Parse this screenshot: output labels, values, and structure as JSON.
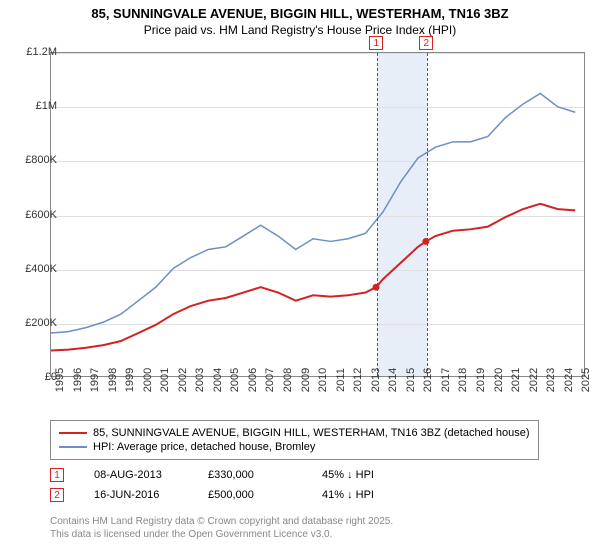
{
  "title_line1": "85, SUNNINGVALE AVENUE, BIGGIN HILL, WESTERHAM, TN16 3BZ",
  "title_line2": "Price paid vs. HM Land Registry's House Price Index (HPI)",
  "chart": {
    "type": "line",
    "background_color": "#ffffff",
    "grid_color": "#e0e0e0",
    "border_color": "#888888",
    "xlim": [
      1995,
      2025.5
    ],
    "ylim": [
      0,
      1200000
    ],
    "ytick_step": 200000,
    "yticks": [
      "£0",
      "£200K",
      "£400K",
      "£600K",
      "£800K",
      "£1M",
      "£1.2M"
    ],
    "xticks": [
      1995,
      1996,
      1997,
      1998,
      1999,
      2000,
      2001,
      2002,
      2003,
      2004,
      2005,
      2006,
      2007,
      2008,
      2009,
      2010,
      2011,
      2012,
      2013,
      2014,
      2015,
      2016,
      2017,
      2018,
      2019,
      2020,
      2021,
      2022,
      2023,
      2024,
      2025
    ],
    "label_fontsize": 11,
    "highlight": {
      "start": 2013.6,
      "end": 2016.45,
      "color": "#e8eef7"
    },
    "markers": [
      {
        "n": "1",
        "x": 2013.6,
        "dash_color": "#d22222"
      },
      {
        "n": "2",
        "x": 2016.45,
        "dash_color": "#d22222"
      }
    ],
    "series": [
      {
        "name": "red",
        "color": "#d22222",
        "width": 2,
        "legend": "85, SUNNINGVALE AVENUE, BIGGIN HILL, WESTERHAM, TN16 3BZ (detached house)",
        "points": [
          [
            1995,
            95000
          ],
          [
            1996,
            98000
          ],
          [
            1997,
            105000
          ],
          [
            1998,
            115000
          ],
          [
            1999,
            130000
          ],
          [
            2000,
            160000
          ],
          [
            2001,
            190000
          ],
          [
            2002,
            230000
          ],
          [
            2003,
            260000
          ],
          [
            2004,
            280000
          ],
          [
            2005,
            290000
          ],
          [
            2006,
            310000
          ],
          [
            2007,
            330000
          ],
          [
            2008,
            310000
          ],
          [
            2009,
            280000
          ],
          [
            2010,
            300000
          ],
          [
            2011,
            295000
          ],
          [
            2012,
            300000
          ],
          [
            2013,
            310000
          ],
          [
            2013.6,
            330000
          ],
          [
            2014,
            360000
          ],
          [
            2015,
            420000
          ],
          [
            2016,
            480000
          ],
          [
            2016.45,
            500000
          ],
          [
            2017,
            520000
          ],
          [
            2018,
            540000
          ],
          [
            2019,
            545000
          ],
          [
            2020,
            555000
          ],
          [
            2021,
            590000
          ],
          [
            2022,
            620000
          ],
          [
            2023,
            640000
          ],
          [
            2024,
            620000
          ],
          [
            2025,
            615000
          ]
        ],
        "dots": [
          {
            "x": 2013.6,
            "y": 330000
          },
          {
            "x": 2016.45,
            "y": 500000
          }
        ]
      },
      {
        "name": "blue",
        "color": "#6b8fc5",
        "width": 1.5,
        "legend": "HPI: Average price, detached house, Bromley",
        "points": [
          [
            1995,
            160000
          ],
          [
            1996,
            165000
          ],
          [
            1997,
            180000
          ],
          [
            1998,
            200000
          ],
          [
            1999,
            230000
          ],
          [
            2000,
            280000
          ],
          [
            2001,
            330000
          ],
          [
            2002,
            400000
          ],
          [
            2003,
            440000
          ],
          [
            2004,
            470000
          ],
          [
            2005,
            480000
          ],
          [
            2006,
            520000
          ],
          [
            2007,
            560000
          ],
          [
            2008,
            520000
          ],
          [
            2009,
            470000
          ],
          [
            2010,
            510000
          ],
          [
            2011,
            500000
          ],
          [
            2012,
            510000
          ],
          [
            2013,
            530000
          ],
          [
            2014,
            610000
          ],
          [
            2015,
            720000
          ],
          [
            2016,
            810000
          ],
          [
            2017,
            850000
          ],
          [
            2018,
            870000
          ],
          [
            2019,
            870000
          ],
          [
            2020,
            890000
          ],
          [
            2021,
            960000
          ],
          [
            2022,
            1010000
          ],
          [
            2023,
            1050000
          ],
          [
            2024,
            1000000
          ],
          [
            2025,
            980000
          ]
        ]
      }
    ]
  },
  "transactions": [
    {
      "n": "1",
      "date": "08-AUG-2013",
      "price": "£330,000",
      "pct": "45% ↓ HPI"
    },
    {
      "n": "2",
      "date": "16-JUN-2016",
      "price": "£500,000",
      "pct": "41% ↓ HPI"
    }
  ],
  "footer_line1": "Contains HM Land Registry data © Crown copyright and database right 2025.",
  "footer_line2": "This data is licensed under the Open Government Licence v3.0."
}
